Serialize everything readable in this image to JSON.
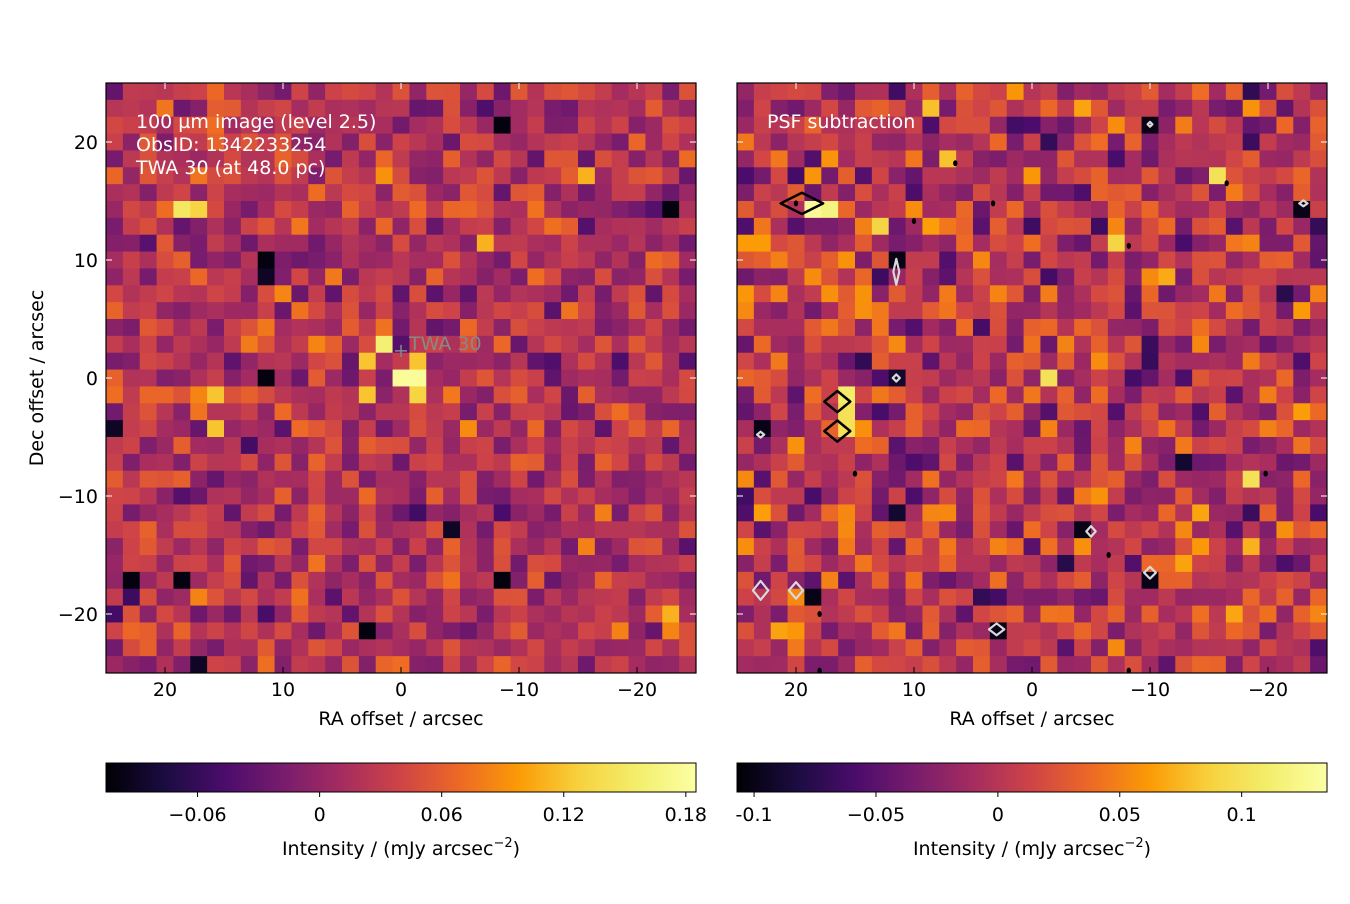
{
  "chart_data": [
    {
      "type": "heatmap",
      "panel": "left",
      "annotation_lines": [
        "100 µm image (level 2.5)",
        "ObsID: 1342233254",
        "TWA 30 (at 48.0 pc)"
      ],
      "source_label": "TWA 30",
      "xlabel": "RA offset / arcsec",
      "ylabel": "Dec offset / arcsec",
      "xlim": [
        25,
        -25
      ],
      "ylim": [
        -25,
        25
      ],
      "x_ticks": [
        20,
        10,
        0,
        -10,
        -20
      ],
      "y_ticks": [
        20,
        10,
        0,
        -10,
        -20
      ],
      "grid": false,
      "colormap": "inferno",
      "colorbar": {
        "label_main": "Intensity / (mJy arcsec",
        "label_exp": "−2",
        "label_close": ")",
        "range": [
          -0.105,
          0.185
        ],
        "ticks": [
          -0.06,
          0,
          0.06,
          0.12,
          0.18
        ],
        "tick_labels": [
          "−0.06",
          "0",
          "0.06",
          "0.12",
          "0.18"
        ]
      },
      "marker": {
        "x": 0,
        "y": 2.3
      },
      "peak": {
        "x": -0.8,
        "y": 0,
        "value": 0.18
      },
      "bright_pixels": [
        {
          "x": 0.8,
          "y": 3.3,
          "value": 0.16
        },
        {
          "x": -0.8,
          "y": 1.8,
          "value": 0.12
        },
        {
          "x": 2.5,
          "y": 2.0,
          "value": 0.12
        },
        {
          "x": 2.5,
          "y": -1.5,
          "value": 0.12
        },
        {
          "x": -0.8,
          "y": -1.5,
          "value": 0.13
        },
        {
          "x": 19.2,
          "y": 14.8,
          "value": 0.15
        },
        {
          "x": 17.5,
          "y": 14.8,
          "value": 0.13
        },
        {
          "x": 16.0,
          "y": -1.5,
          "value": 0.12
        },
        {
          "x": 16.0,
          "y": -4.8,
          "value": 0.12
        },
        {
          "x": -7.5,
          "y": 11.5,
          "value": 0.11
        },
        {
          "x": -15.8,
          "y": 16.5,
          "value": 0.11
        },
        {
          "x": -22.2,
          "y": -19.8,
          "value": 0.11
        }
      ],
      "dark_pixels": [
        {
          "x": 11.0,
          "y": 9.8,
          "value": -0.1
        },
        {
          "x": 11.0,
          "y": 8.2,
          "value": -0.09
        },
        {
          "x": 11.0,
          "y": 0.0,
          "value": -0.1
        },
        {
          "x": -9.2,
          "y": 21.5,
          "value": -0.1
        },
        {
          "x": -22.2,
          "y": 14.8,
          "value": -0.1
        },
        {
          "x": 22.5,
          "y": -16.5,
          "value": -0.1
        },
        {
          "x": 19.2,
          "y": -16.5,
          "value": -0.1
        },
        {
          "x": 3.3,
          "y": -21.5,
          "value": -0.1
        },
        {
          "x": -9.2,
          "y": -16.5,
          "value": -0.1
        },
        {
          "x": -4.2,
          "y": -13.0,
          "value": -0.09
        },
        {
          "x": 24.2,
          "y": -4.8,
          "value": -0.09
        },
        {
          "x": 17.5,
          "y": -24.8,
          "value": -0.09
        }
      ],
      "noise_mean": 0.02,
      "noise_sigma": 0.04
    },
    {
      "type": "heatmap",
      "panel": "right",
      "annotation_lines": [
        "PSF subtraction"
      ],
      "xlabel": "RA offset / arcsec",
      "xlim": [
        25,
        -25
      ],
      "ylim": [
        -25,
        25
      ],
      "x_ticks": [
        20,
        10,
        0,
        -10,
        -20
      ],
      "y_ticks": [
        20,
        10,
        0,
        -10,
        -20
      ],
      "grid": false,
      "colormap": "inferno",
      "colorbar": {
        "label_main": "Intensity / (mJy arcsec",
        "label_exp": "−2",
        "label_close": ")",
        "range": [
          -0.107,
          0.135
        ],
        "ticks": [
          -0.1,
          -0.05,
          0,
          0.05,
          0.1
        ],
        "tick_labels": [
          "-0.1",
          "−0.05",
          "0",
          "0.05",
          "0.1"
        ]
      },
      "bright_pixels": [
        {
          "x": 19.2,
          "y": 14.8,
          "value": 0.13
        },
        {
          "x": 17.5,
          "y": 14.8,
          "value": 0.12
        },
        {
          "x": 15.8,
          "y": -1.5,
          "value": 0.11
        },
        {
          "x": 15.8,
          "y": -3.2,
          "value": 0.1
        },
        {
          "x": 15.8,
          "y": -4.8,
          "value": 0.1
        },
        {
          "x": 12.5,
          "y": 13.2,
          "value": 0.09
        },
        {
          "x": -1.5,
          "y": 0.0,
          "value": 0.1
        },
        {
          "x": -15.8,
          "y": 16.5,
          "value": 0.1
        },
        {
          "x": -19.2,
          "y": -8.2,
          "value": 0.1
        },
        {
          "x": -7.5,
          "y": 11.5,
          "value": 0.09
        },
        {
          "x": 7.5,
          "y": 18.2,
          "value": 0.08
        }
      ],
      "dark_pixels": [
        {
          "x": 11.0,
          "y": 9.8,
          "value": -0.1
        },
        {
          "x": 11.0,
          "y": 0.0,
          "value": -0.09
        },
        {
          "x": 22.5,
          "y": -4.8,
          "value": -0.1
        },
        {
          "x": -9.5,
          "y": 21.5,
          "value": -0.1
        },
        {
          "x": -22.5,
          "y": 14.8,
          "value": -0.1
        },
        {
          "x": 19.2,
          "y": -18.2,
          "value": -0.1
        },
        {
          "x": 2.5,
          "y": -21.5,
          "value": -0.1
        },
        {
          "x": -9.5,
          "y": -16.5,
          "value": -0.1
        },
        {
          "x": -4.5,
          "y": -13.0,
          "value": -0.1
        },
        {
          "x": -12.5,
          "y": -6.5,
          "value": -0.09
        },
        {
          "x": 10.8,
          "y": -11.5,
          "value": -0.09
        }
      ],
      "positive_contours": [
        {
          "x": 19.5,
          "y": 14.8,
          "w": 3.6,
          "h": 1.8
        },
        {
          "x": 16.5,
          "y": -2.0,
          "w": 2.2,
          "h": 1.8
        },
        {
          "x": 16.5,
          "y": -4.5,
          "w": 2.2,
          "h": 1.8
        }
      ],
      "positive_dots": [
        {
          "x": 10.0,
          "y": 13.3
        },
        {
          "x": 6.5,
          "y": 18.2
        },
        {
          "x": 3.3,
          "y": 14.8
        },
        {
          "x": -8.2,
          "y": 11.2
        },
        {
          "x": -16.5,
          "y": 16.5
        },
        {
          "x": -19.8,
          "y": -8.1
        },
        {
          "x": 15.0,
          "y": -8.1
        },
        {
          "x": -6.5,
          "y": -15.0
        },
        {
          "x": 18.0,
          "y": -20.0
        },
        {
          "x": -8.2,
          "y": -24.8
        },
        {
          "x": 18.0,
          "y": -24.8
        },
        {
          "x": 20.0,
          "y": 14.8
        }
      ],
      "negative_contours": [
        {
          "x": 11.5,
          "y": 9.0,
          "w": 0.5,
          "h": 2.2
        },
        {
          "x": 11.5,
          "y": 0.0,
          "w": 0.6,
          "h": 0.6
        },
        {
          "x": 23.0,
          "y": -18.0,
          "w": 1.3,
          "h": 1.6
        },
        {
          "x": 20.0,
          "y": -18.0,
          "w": 1.2,
          "h": 1.4
        },
        {
          "x": 3.0,
          "y": -21.3,
          "w": 1.3,
          "h": 1.0
        },
        {
          "x": -5.0,
          "y": -13.0,
          "w": 0.8,
          "h": 0.9
        },
        {
          "x": -10.0,
          "y": -16.5,
          "w": 1.0,
          "h": 1.0
        },
        {
          "x": 23.0,
          "y": -4.8,
          "w": 0.6,
          "h": 0.5
        },
        {
          "x": -10.0,
          "y": 21.5,
          "w": 0.4,
          "h": 0.4
        },
        {
          "x": -23.0,
          "y": 14.8,
          "w": 0.7,
          "h": 0.5
        }
      ],
      "noise_mean": 0.0,
      "noise_sigma": 0.04
    }
  ]
}
